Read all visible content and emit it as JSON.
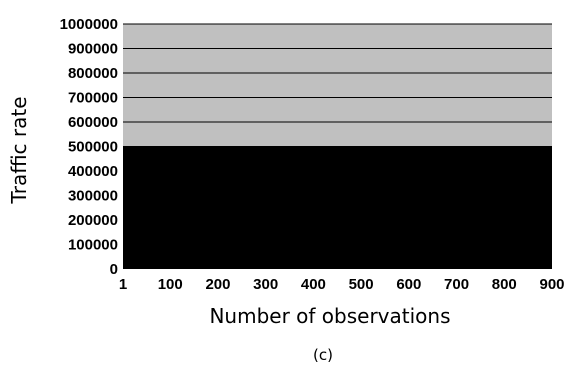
{
  "chart_data": {
    "type": "area",
    "title": "",
    "caption": "(c)",
    "xlabel": "Number of observations",
    "ylabel": "Traffic rate",
    "xlim": [
      1,
      900
    ],
    "ylim": [
      0,
      1000000
    ],
    "x_ticks": [
      "1",
      "100",
      "200",
      "300",
      "400",
      "500",
      "600",
      "700",
      "800",
      "900"
    ],
    "y_ticks": [
      "0",
      "100000",
      "200000",
      "300000",
      "400000",
      "500000",
      "600000",
      "700000",
      "800000",
      "900000",
      "1000000"
    ],
    "grid": "horizontal lines above the filled area",
    "background_color": "#c0c0c0",
    "series": [
      {
        "x": [
          1,
          900
        ],
        "y": [
          500000,
          500000
        ],
        "color": "#000000"
      }
    ]
  }
}
